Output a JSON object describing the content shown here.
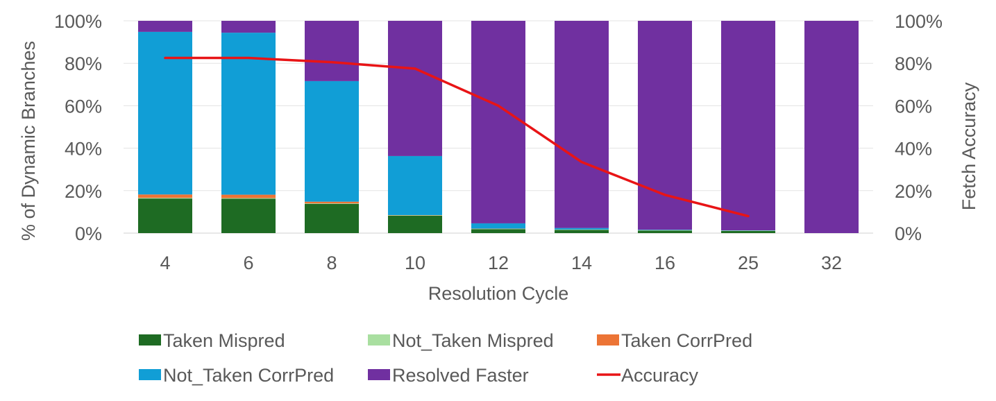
{
  "chart_data": {
    "type": "bar",
    "stacked": true,
    "title": "",
    "xlabel": "Resolution Cycle",
    "ylabel": "% of Dynamic Branches",
    "y2label": "Fetch Accuracy",
    "ylim": [
      0,
      100
    ],
    "y2lim": [
      0,
      100
    ],
    "yticks": [
      "0%",
      "20%",
      "40%",
      "60%",
      "80%",
      "100%"
    ],
    "y2ticks": [
      "0%",
      "20%",
      "40%",
      "60%",
      "80%",
      "100%"
    ],
    "grid": true,
    "legend_position": "bottom",
    "categories": [
      "4",
      "6",
      "8",
      "10",
      "12",
      "14",
      "16",
      "25",
      "32"
    ],
    "series": [
      {
        "name": "Taken Mispred",
        "color": "#1e6b23",
        "type": "bar",
        "values": [
          16.3,
          16.2,
          13.8,
          8.2,
          1.8,
          1.5,
          1.2,
          1.0,
          0
        ]
      },
      {
        "name": "Not_Taken Mispred",
        "color": "#a9dfa0",
        "type": "bar",
        "values": [
          0.3,
          0.3,
          0.2,
          0.2,
          0.2,
          0.2,
          0.2,
          0.2,
          0
        ]
      },
      {
        "name": "Taken CorrPred",
        "color": "#ec7435",
        "type": "bar",
        "values": [
          1.6,
          1.6,
          0.8,
          0.1,
          0.1,
          0,
          0,
          0,
          0
        ]
      },
      {
        "name": "Not_Taken CorrPred",
        "color": "#119ed6",
        "type": "bar",
        "values": [
          76.6,
          76.3,
          56.8,
          27.8,
          2.5,
          0.7,
          0.2,
          0.1,
          0
        ]
      },
      {
        "name": "Resolved Faster",
        "color": "#7030a0",
        "type": "bar",
        "values": [
          5.2,
          5.6,
          28.4,
          63.7,
          95.4,
          97.6,
          98.4,
          98.7,
          100
        ]
      },
      {
        "name": "Accuracy",
        "color": "#e81416",
        "type": "line",
        "axis": "right",
        "values": [
          82.5,
          82.5,
          80.5,
          77.5,
          60,
          33.5,
          18,
          8,
          null
        ]
      }
    ]
  }
}
